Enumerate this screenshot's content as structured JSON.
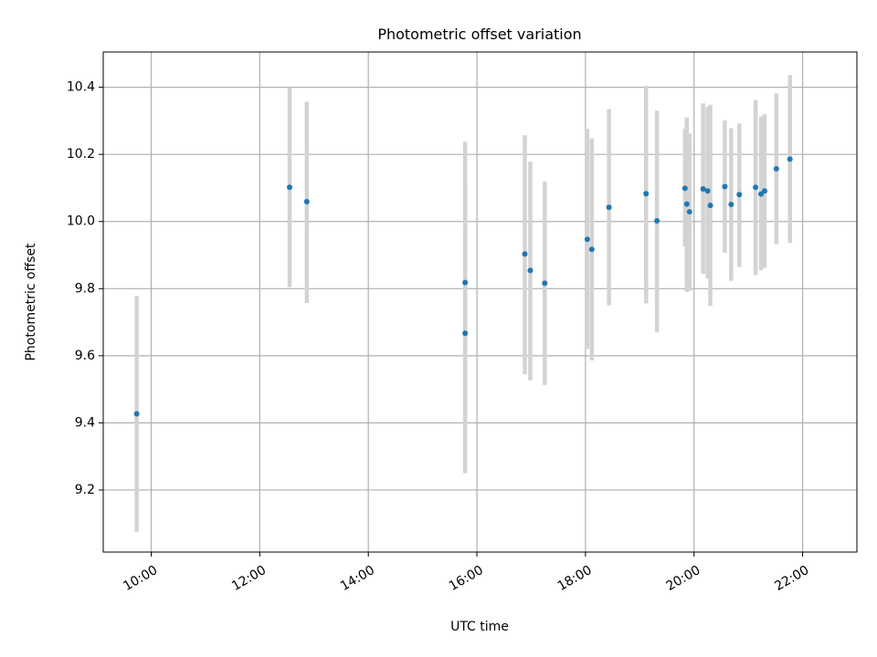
{
  "chart_data": {
    "type": "scatter",
    "title": "Photometric offset variation",
    "xlabel": "UTC time",
    "ylabel": "Photometric offset",
    "x_tick_labels": [
      "10:00",
      "12:00",
      "14:00",
      "16:00",
      "18:00",
      "20:00",
      "22:00"
    ],
    "x_ticks": [
      "10:00",
      "12:00",
      "14:00",
      "16:00",
      "18:00",
      "20:00",
      "22:00"
    ],
    "y_tick_labels": [
      "9.2",
      "9.4",
      "9.6",
      "9.8",
      "10.0",
      "10.2",
      "10.4"
    ],
    "y_ticks": [
      9.2,
      9.4,
      9.6,
      9.8,
      10.0,
      10.2,
      10.4
    ],
    "xlim": [
      "09:07",
      "23:00"
    ],
    "ylim": [
      9.015,
      10.505
    ],
    "grid": true,
    "colors": {
      "point": "#1f77b4",
      "errorbar": "#d3d3d3",
      "grid": "#b0b0b0"
    },
    "points": [
      {
        "x": "09:44",
        "y": 9.427,
        "ylow": 9.075,
        "yhigh": 9.778
      },
      {
        "x": "12:33",
        "y": 10.102,
        "ylow": 9.805,
        "yhigh": 10.4
      },
      {
        "x": "12:52",
        "y": 10.059,
        "ylow": 9.757,
        "yhigh": 10.357
      },
      {
        "x": "15:47",
        "y": 9.818,
        "ylow": 9.4,
        "yhigh": 10.238
      },
      {
        "x": "15:47",
        "y": 9.667,
        "ylow": 9.25,
        "yhigh": 10.1
      },
      {
        "x": "16:53",
        "y": 9.903,
        "ylow": 9.545,
        "yhigh": 10.257
      },
      {
        "x": "16:59",
        "y": 9.854,
        "ylow": 9.527,
        "yhigh": 10.178
      },
      {
        "x": "17:15",
        "y": 9.816,
        "ylow": 9.513,
        "yhigh": 10.119
      },
      {
        "x": "18:02",
        "y": 9.947,
        "ylow": 9.62,
        "yhigh": 10.276
      },
      {
        "x": "18:07",
        "y": 9.917,
        "ylow": 9.586,
        "yhigh": 10.248
      },
      {
        "x": "18:26",
        "y": 10.042,
        "ylow": 9.75,
        "yhigh": 10.335
      },
      {
        "x": "19:07",
        "y": 10.083,
        "ylow": 9.756,
        "yhigh": 10.404
      },
      {
        "x": "19:19",
        "y": 10.002,
        "ylow": 9.67,
        "yhigh": 10.33
      },
      {
        "x": "19:50",
        "y": 10.099,
        "ylow": 9.926,
        "yhigh": 10.277
      },
      {
        "x": "19:52",
        "y": 10.052,
        "ylow": 9.79,
        "yhigh": 10.31
      },
      {
        "x": "19:55",
        "y": 10.029,
        "ylow": 9.793,
        "yhigh": 10.262
      },
      {
        "x": "20:10",
        "y": 10.097,
        "ylow": 9.844,
        "yhigh": 10.352
      },
      {
        "x": "20:15",
        "y": 10.091,
        "ylow": 9.83,
        "yhigh": 10.342
      },
      {
        "x": "20:18",
        "y": 10.048,
        "ylow": 9.748,
        "yhigh": 10.348
      },
      {
        "x": "20:34",
        "y": 10.104,
        "ylow": 9.907,
        "yhigh": 10.301
      },
      {
        "x": "20:41",
        "y": 10.051,
        "ylow": 9.823,
        "yhigh": 10.278
      },
      {
        "x": "20:50",
        "y": 10.08,
        "ylow": 9.864,
        "yhigh": 10.292
      },
      {
        "x": "21:08",
        "y": 10.102,
        "ylow": 9.84,
        "yhigh": 10.362
      },
      {
        "x": "21:14",
        "y": 10.082,
        "ylow": 9.855,
        "yhigh": 10.313
      },
      {
        "x": "21:18",
        "y": 10.091,
        "ylow": 9.862,
        "yhigh": 10.32
      },
      {
        "x": "21:31",
        "y": 10.157,
        "ylow": 9.932,
        "yhigh": 10.382
      },
      {
        "x": "21:46",
        "y": 10.186,
        "ylow": 9.936,
        "yhigh": 10.436
      }
    ]
  }
}
